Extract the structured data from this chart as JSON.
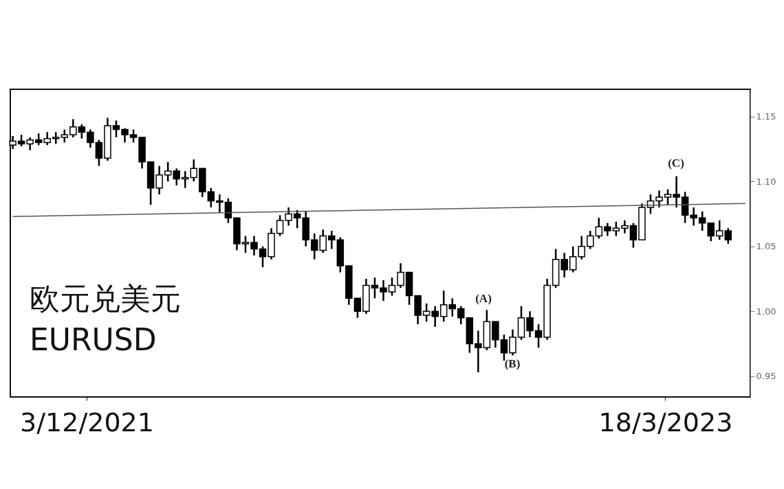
{
  "chart_data": {
    "type": "candlestick",
    "title": "欧元兑美元",
    "subtitle": "EURUSD",
    "xlim": [
      "2021-10-02",
      "2023-05-26"
    ],
    "xticks": [
      {
        "value": "2021-12-03",
        "label": "3/12/2021"
      },
      {
        "value": "2023-03-18",
        "label": "18/3/2023"
      }
    ],
    "ylim": [
      0.934,
      1.171
    ],
    "yticks": [
      {
        "value": 0.95,
        "label": "0.95"
      },
      {
        "value": 1.0,
        "label": "1.00"
      },
      {
        "value": 1.05,
        "label": "1.05"
      },
      {
        "value": 1.1,
        "label": "1.10"
      },
      {
        "value": 1.15,
        "label": "1.15"
      }
    ],
    "grid": false,
    "series": [
      {
        "color": "#000000",
        "x": [
          "2021-10-04",
          "2021-10-11",
          "2021-10-18",
          "2021-10-25",
          "2021-11-01",
          "2021-11-08",
          "2021-11-15",
          "2021-11-22",
          "2021-11-29",
          "2021-12-06",
          "2021-12-13",
          "2021-12-20",
          "2021-12-27",
          "2022-01-03",
          "2022-01-10",
          "2022-01-17",
          "2022-01-24",
          "2022-01-31",
          "2022-02-07",
          "2022-02-14",
          "2022-02-21",
          "2022-02-28",
          "2022-03-07",
          "2022-03-14",
          "2022-03-21",
          "2022-03-28",
          "2022-04-04",
          "2022-04-11",
          "2022-04-18",
          "2022-04-25",
          "2022-05-02",
          "2022-05-09",
          "2022-05-16",
          "2022-05-23",
          "2022-05-30",
          "2022-06-06",
          "2022-06-13",
          "2022-06-20",
          "2022-06-27",
          "2022-07-04",
          "2022-07-11",
          "2022-07-18",
          "2022-07-25",
          "2022-08-01",
          "2022-08-08",
          "2022-08-15",
          "2022-08-22",
          "2022-08-29",
          "2022-09-05",
          "2022-09-12",
          "2022-09-19",
          "2022-09-26",
          "2022-10-03",
          "2022-10-10",
          "2022-10-17",
          "2022-10-24",
          "2022-10-31",
          "2022-11-07",
          "2022-11-14",
          "2022-11-21",
          "2022-11-28",
          "2022-12-05",
          "2022-12-12",
          "2022-12-19",
          "2022-12-26",
          "2023-01-02",
          "2023-01-09",
          "2023-01-16",
          "2023-01-23",
          "2023-01-30",
          "2023-02-06",
          "2023-02-13",
          "2023-02-20",
          "2023-02-27",
          "2023-03-06",
          "2023-03-13",
          "2023-03-20",
          "2023-03-27",
          "2023-04-03",
          "2023-04-10",
          "2023-04-17",
          "2023-04-24",
          "2023-05-01",
          "2023-05-08"
        ],
        "ohlc": [
          [
            1.128,
            1.135,
            1.125,
            1.131
          ],
          [
            1.131,
            1.136,
            1.127,
            1.129
          ],
          [
            1.129,
            1.134,
            1.124,
            1.132
          ],
          [
            1.132,
            1.137,
            1.128,
            1.13
          ],
          [
            1.13,
            1.138,
            1.128,
            1.133
          ],
          [
            1.133,
            1.138,
            1.129,
            1.134
          ],
          [
            1.134,
            1.14,
            1.13,
            1.136
          ],
          [
            1.136,
            1.148,
            1.134,
            1.142
          ],
          [
            1.142,
            1.144,
            1.133,
            1.138
          ],
          [
            1.138,
            1.14,
            1.126,
            1.13
          ],
          [
            1.13,
            1.132,
            1.112,
            1.118
          ],
          [
            1.118,
            1.149,
            1.116,
            1.143
          ],
          [
            1.143,
            1.147,
            1.134,
            1.14
          ],
          [
            1.14,
            1.141,
            1.13,
            1.136
          ],
          [
            1.136,
            1.14,
            1.13,
            1.134
          ],
          [
            1.134,
            1.134,
            1.11,
            1.115
          ],
          [
            1.115,
            1.115,
            1.082,
            1.095
          ],
          [
            1.095,
            1.112,
            1.09,
            1.105
          ],
          [
            1.105,
            1.115,
            1.1,
            1.108
          ],
          [
            1.108,
            1.11,
            1.097,
            1.102
          ],
          [
            1.102,
            1.108,
            1.095,
            1.103
          ],
          [
            1.103,
            1.117,
            1.1,
            1.11
          ],
          [
            1.11,
            1.11,
            1.088,
            1.092
          ],
          [
            1.092,
            1.095,
            1.08,
            1.085
          ],
          [
            1.085,
            1.09,
            1.076,
            1.084
          ],
          [
            1.084,
            1.087,
            1.068,
            1.072
          ],
          [
            1.072,
            1.072,
            1.047,
            1.052
          ],
          [
            1.052,
            1.058,
            1.045,
            1.053
          ],
          [
            1.053,
            1.058,
            1.043,
            1.048
          ],
          [
            1.048,
            1.05,
            1.034,
            1.042
          ],
          [
            1.042,
            1.064,
            1.04,
            1.06
          ],
          [
            1.06,
            1.074,
            1.058,
            1.07
          ],
          [
            1.07,
            1.08,
            1.066,
            1.075
          ],
          [
            1.075,
            1.078,
            1.064,
            1.072
          ],
          [
            1.072,
            1.077,
            1.05,
            1.055
          ],
          [
            1.055,
            1.06,
            1.04,
            1.047
          ],
          [
            1.047,
            1.063,
            1.045,
            1.058
          ],
          [
            1.058,
            1.062,
            1.048,
            1.055
          ],
          [
            1.055,
            1.057,
            1.03,
            1.035
          ],
          [
            1.035,
            1.035,
            1.005,
            1.01
          ],
          [
            1.01,
            1.01,
            0.995,
            1.0
          ],
          [
            1.0,
            1.025,
            0.998,
            1.02
          ],
          [
            1.02,
            1.026,
            1.01,
            1.018
          ],
          [
            1.018,
            1.024,
            1.008,
            1.015
          ],
          [
            1.015,
            1.026,
            1.012,
            1.02
          ],
          [
            1.02,
            1.037,
            1.018,
            1.03
          ],
          [
            1.03,
            1.03,
            1.005,
            1.012
          ],
          [
            1.012,
            1.012,
            0.99,
            0.997
          ],
          [
            0.997,
            1.006,
            0.992,
            1.0
          ],
          [
            1.0,
            1.004,
            0.988,
            0.996
          ],
          [
            0.996,
            1.016,
            0.992,
            1.005
          ],
          [
            1.005,
            1.01,
            0.996,
            1.002
          ],
          [
            1.002,
            1.004,
            0.99,
            0.995
          ],
          [
            0.995,
            0.995,
            0.968,
            0.975
          ],
          [
            0.975,
            0.985,
            0.953,
            0.972
          ],
          [
            0.972,
            1.001,
            0.97,
            0.992
          ],
          [
            0.992,
            0.992,
            0.972,
            0.978
          ],
          [
            0.978,
            0.982,
            0.962,
            0.968
          ],
          [
            0.968,
            0.986,
            0.966,
            0.98
          ],
          [
            0.98,
            1.004,
            0.978,
            0.995
          ],
          [
            0.995,
            1.0,
            0.98,
            0.985
          ],
          [
            0.985,
            0.99,
            0.972,
            0.98
          ],
          [
            0.98,
            1.025,
            0.978,
            1.02
          ],
          [
            1.02,
            1.048,
            1.018,
            1.04
          ],
          [
            1.04,
            1.045,
            1.026,
            1.032
          ],
          [
            1.032,
            1.05,
            1.03,
            1.042
          ],
          [
            1.042,
            1.058,
            1.04,
            1.05
          ],
          [
            1.05,
            1.062,
            1.048,
            1.058
          ],
          [
            1.058,
            1.072,
            1.056,
            1.065
          ],
          [
            1.065,
            1.068,
            1.058,
            1.062
          ],
          [
            1.062,
            1.069,
            1.058,
            1.064
          ],
          [
            1.064,
            1.07,
            1.06,
            1.066
          ],
          [
            1.066,
            1.068,
            1.049,
            1.055
          ],
          [
            1.055,
            1.083,
            1.055,
            1.08
          ],
          [
            1.08,
            1.09,
            1.075,
            1.085
          ],
          [
            1.085,
            1.093,
            1.08,
            1.088
          ],
          [
            1.088,
            1.094,
            1.082,
            1.09
          ],
          [
            1.09,
            1.104,
            1.08,
            1.088
          ],
          [
            1.088,
            1.092,
            1.068,
            1.074
          ],
          [
            1.074,
            1.08,
            1.066,
            1.072
          ],
          [
            1.072,
            1.077,
            1.062,
            1.068
          ],
          [
            1.068,
            1.068,
            1.054,
            1.058
          ],
          [
            1.058,
            1.07,
            1.055,
            1.062
          ],
          [
            1.062,
            1.064,
            1.052,
            1.055
          ]
        ]
      },
      {
        "type": "line",
        "color": "#555555",
        "x": [
          "2021-10-04",
          "2023-05-22"
        ],
        "values": [
          1.073,
          1.083
        ]
      }
    ],
    "annotations": [
      "(A)",
      "(B)",
      "(C)"
    ]
  }
}
